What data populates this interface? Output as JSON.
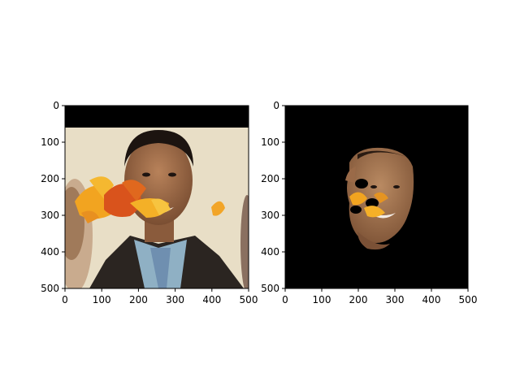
{
  "chart_data": [
    {
      "type": "image",
      "content": "photo of a smiling man with autumn leaf overlays across the face",
      "xlim": [
        0,
        500
      ],
      "ylim": [
        500,
        0
      ],
      "x_ticks": [
        0,
        100,
        200,
        300,
        400,
        500
      ],
      "y_ticks": [
        0,
        100,
        200,
        300,
        400,
        500
      ],
      "top_black_band_rows": [
        0,
        60
      ],
      "colors": {
        "background_band": "#000000",
        "wall": "#e6dcc4",
        "skin": "#9a6a48",
        "jacket": "#2a2420",
        "leaf_orange": "#f0a020",
        "leaf_red": "#d8501a"
      }
    },
    {
      "type": "image",
      "content": "segmented face on black background with leaf-shaped cutouts",
      "xlim": [
        0,
        500
      ],
      "ylim": [
        500,
        0
      ],
      "x_ticks": [
        0,
        100,
        200,
        300,
        400,
        500
      ],
      "y_ticks": [
        0,
        100,
        200,
        300,
        400,
        500
      ],
      "colors": {
        "background": "#000000",
        "skin": "#a06a48",
        "leaf_orange": "#f0a020"
      }
    }
  ]
}
